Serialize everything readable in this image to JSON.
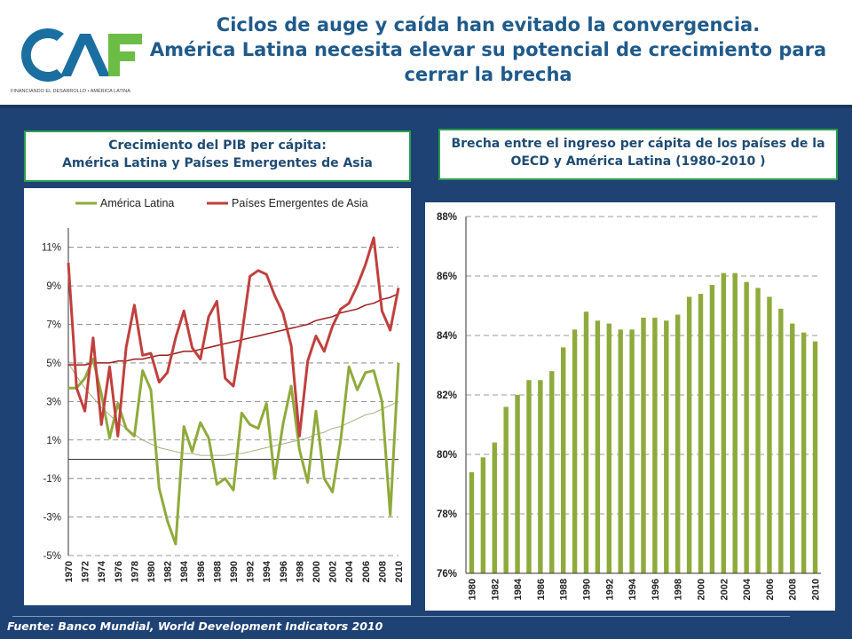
{
  "header": {
    "title_line1": "Ciclos de auge y caída han evitado la convergencia.",
    "title_line2": "América Latina necesita elevar su potencial de crecimiento para cerrar la brecha",
    "logo_text": "CAF",
    "logo_tagline": "FINANCIANDO EL DESARROLLO • AMÉRICA LATINA"
  },
  "panels": {
    "left_title_line1": "Crecimiento del PIB per cápita:",
    "left_title_line2": "América Latina y Países Emergentes de Asia",
    "right_title_line1": "Brecha entre el ingreso per cápita de los países de la",
    "right_title_line2": "OECD y América Latina (1980-2010 )"
  },
  "footer": {
    "source": "Fuente: Banco Mundial, World Development Indicators 2010"
  },
  "colors": {
    "latam": "#8faa3c",
    "asia": "#c0403d",
    "bar": "#8faa3c",
    "trend_asia": "#9b1c1c",
    "trend_latam": "#ffffff"
  },
  "chart_data": [
    {
      "type": "line",
      "ylim": [
        -5,
        12
      ],
      "yticks": [
        "-5%",
        "-3%",
        "-1%",
        "1%",
        "3%",
        "5%",
        "7%",
        "9%",
        "11%"
      ],
      "ytick_values": [
        -5,
        -3,
        -1,
        1,
        3,
        5,
        7,
        9,
        11
      ],
      "x": [
        1970,
        1971,
        1972,
        1973,
        1974,
        1975,
        1976,
        1977,
        1978,
        1979,
        1980,
        1981,
        1982,
        1983,
        1984,
        1985,
        1986,
        1987,
        1988,
        1989,
        1990,
        1991,
        1992,
        1993,
        1994,
        1995,
        1996,
        1997,
        1998,
        1999,
        2000,
        2001,
        2002,
        2003,
        2004,
        2005,
        2006,
        2007,
        2008,
        2009,
        2010
      ],
      "xtick_labels": [
        "1970",
        "1972",
        "1974",
        "1976",
        "1978",
        "1980",
        "1982",
        "1984",
        "1986",
        "1988",
        "1990",
        "1992",
        "1994",
        "1996",
        "1998",
        "2000",
        "2002",
        "2004",
        "2006",
        "2008",
        "2010"
      ],
      "series": [
        {
          "name": "América Latina",
          "values": [
            3.7,
            3.7,
            4.2,
            5.2,
            3.4,
            1.1,
            2.9,
            1.6,
            1.2,
            4.6,
            3.6,
            -1.5,
            -3.2,
            -4.4,
            1.7,
            0.4,
            1.9,
            1.1,
            -1.3,
            -1.0,
            -1.6,
            2.4,
            1.8,
            1.6,
            2.9,
            -1.0,
            1.8,
            3.8,
            0.5,
            -1.2,
            2.5,
            -1.0,
            -1.7,
            1.0,
            4.8,
            3.6,
            4.5,
            4.6,
            3.0,
            -2.9,
            5.0
          ]
        },
        {
          "name": "Países Emergentes de Asia",
          "values": [
            10.2,
            3.7,
            2.5,
            6.3,
            1.8,
            4.8,
            1.2,
            5.8,
            8.0,
            5.4,
            5.5,
            4.0,
            4.5,
            6.3,
            7.7,
            5.8,
            5.2,
            7.4,
            8.2,
            4.2,
            3.8,
            6.4,
            9.5,
            9.8,
            9.6,
            8.5,
            7.6,
            5.9,
            1.2,
            5.1,
            6.4,
            5.6,
            6.9,
            7.8,
            8.1,
            9.0,
            10.1,
            11.5,
            7.7,
            6.7,
            8.9
          ]
        }
      ],
      "trend_latam": [
        5.0,
        4.3,
        3.7,
        3.2,
        2.7,
        2.3,
        1.9,
        1.6,
        1.3,
        1.0,
        0.8,
        0.6,
        0.5,
        0.4,
        0.3,
        0.3,
        0.2,
        0.2,
        0.2,
        0.2,
        0.3,
        0.3,
        0.4,
        0.5,
        0.6,
        0.7,
        0.8,
        0.9,
        1.0,
        1.1,
        1.3,
        1.4,
        1.6,
        1.7,
        1.9,
        2.1,
        2.3,
        2.4,
        2.6,
        2.8,
        3.0
      ],
      "trend_asia": [
        4.9,
        4.9,
        4.9,
        5.0,
        5.0,
        5.0,
        5.1,
        5.1,
        5.2,
        5.2,
        5.3,
        5.4,
        5.4,
        5.5,
        5.6,
        5.6,
        5.7,
        5.8,
        5.9,
        6.0,
        6.1,
        6.2,
        6.3,
        6.4,
        6.5,
        6.6,
        6.7,
        6.8,
        6.9,
        7.0,
        7.2,
        7.3,
        7.4,
        7.6,
        7.7,
        7.8,
        8.0,
        8.1,
        8.3,
        8.4,
        8.6
      ],
      "legend_position": "top"
    },
    {
      "type": "bar",
      "ylim": [
        76,
        88
      ],
      "yticks": [
        "76%",
        "78%",
        "80%",
        "82%",
        "84%",
        "86%",
        "88%"
      ],
      "ytick_values": [
        76,
        78,
        80,
        82,
        84,
        86,
        88
      ],
      "categories": [
        "1980",
        "1981",
        "1982",
        "1983",
        "1984",
        "1985",
        "1986",
        "1987",
        "1988",
        "1989",
        "1990",
        "1991",
        "1992",
        "1993",
        "1994",
        "1995",
        "1996",
        "1997",
        "1998",
        "1999",
        "2000",
        "2001",
        "2002",
        "2003",
        "2004",
        "2005",
        "2006",
        "2007",
        "2008",
        "2009",
        "2010"
      ],
      "xtick_labels": [
        "1980",
        "1982",
        "1984",
        "1986",
        "1988",
        "1990",
        "1992",
        "1994",
        "1996",
        "1998",
        "2000",
        "2002",
        "2004",
        "2006",
        "2008",
        "2010"
      ],
      "values": [
        79.4,
        79.9,
        80.4,
        81.6,
        82.0,
        82.5,
        82.5,
        82.8,
        83.6,
        84.2,
        84.8,
        84.5,
        84.4,
        84.2,
        84.2,
        84.6,
        84.6,
        84.5,
        84.7,
        85.3,
        85.4,
        85.7,
        86.1,
        86.1,
        85.8,
        85.6,
        85.3,
        84.9,
        84.4,
        84.1,
        83.8
      ]
    }
  ]
}
